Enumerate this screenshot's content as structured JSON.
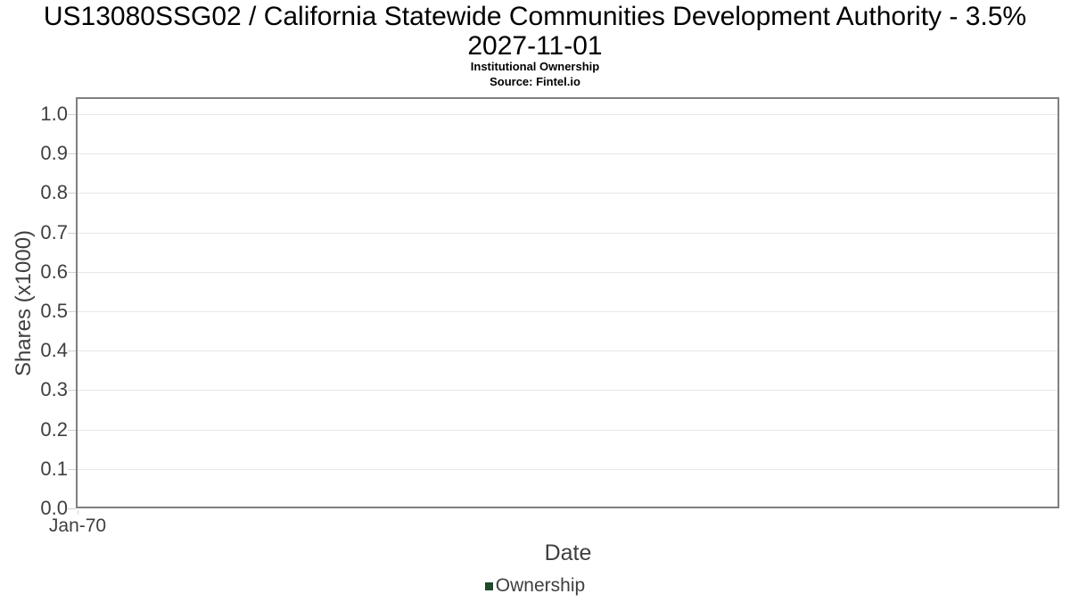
{
  "header": {
    "title_line1": "US13080SSG02 / California Statewide Communities Development Authority - 3.5%",
    "title_line2": "2027-11-01",
    "subtitle": "Institutional Ownership",
    "source": "Source: Fintel.io"
  },
  "chart_data": {
    "type": "line",
    "title": "US13080SSG02 / California Statewide Communities Development Authority - 3.5% 2027-11-01",
    "subtitle": "Institutional Ownership",
    "source": "Source: Fintel.io",
    "xlabel": "Date",
    "ylabel": "Shares (x1000)",
    "x_ticks": [
      "Jan-70"
    ],
    "y_ticks": [
      "0.0",
      "0.1",
      "0.2",
      "0.3",
      "0.4",
      "0.5",
      "0.6",
      "0.7",
      "0.8",
      "0.9",
      "1.0"
    ],
    "ylim": [
      0.0,
      1.04
    ],
    "grid": "horizontal",
    "legend_position": "bottom-center",
    "series": [
      {
        "name": "Ownership",
        "color": "#1d4b2c",
        "x": [],
        "values": []
      }
    ]
  },
  "colors": {
    "title_text": "#000000",
    "axis_text": "#3f3f3f",
    "plot_border": "#7f7f7f",
    "gridline": "#e7e7e7",
    "tick_mark": "#d2d2d2",
    "legend_green": "#1d4b2c",
    "background": "#ffffff"
  }
}
